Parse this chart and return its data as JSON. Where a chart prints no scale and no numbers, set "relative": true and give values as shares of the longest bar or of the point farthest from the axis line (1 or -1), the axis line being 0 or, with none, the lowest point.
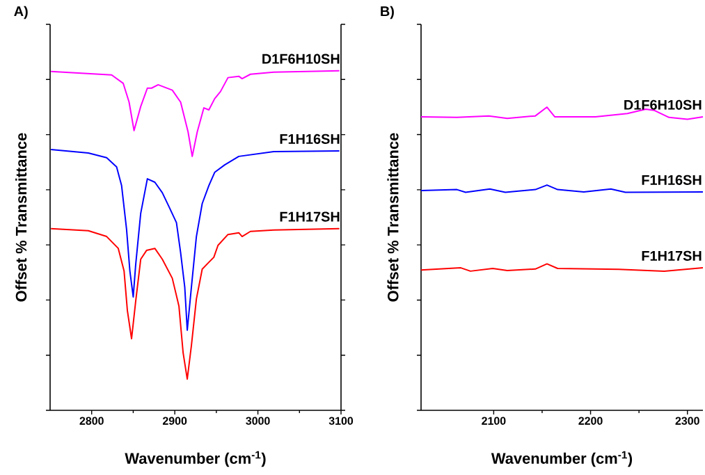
{
  "chart_data": [
    {
      "type": "line",
      "title": "A)",
      "xlabel": "Wavenumber (cm$^{-1}$)",
      "ylabel": "Offset % Transmittance",
      "relative": true,
      "tick_labels": "x",
      "xlim": [
        2750,
        3100
      ],
      "xticks": [
        2800,
        2900,
        3000,
        3100
      ],
      "series": [
        {
          "name": "D1F6H10SH",
          "color": "#ff00ff",
          "x": [
            2751,
            2824,
            2838,
            2845,
            2851,
            2859,
            2867,
            2872,
            2880,
            2897,
            2907,
            2916,
            2921,
            2927,
            2935,
            2941,
            2948,
            2955,
            2964,
            2977,
            2981,
            2991,
            3019,
            3098
          ],
          "values": [
            0.998,
            0.988,
            0.963,
            0.908,
            0.824,
            0.895,
            0.949,
            0.949,
            0.959,
            0.943,
            0.908,
            0.82,
            0.748,
            0.82,
            0.891,
            0.885,
            0.918,
            0.939,
            0.98,
            0.984,
            0.977,
            0.99,
            0.996,
            1.0
          ]
        },
        {
          "name": "F1H16SH",
          "color": "#0000ff",
          "x": [
            2751,
            2796,
            2818,
            2830,
            2836,
            2842,
            2846,
            2850,
            2853,
            2859,
            2867,
            2876,
            2885,
            2893,
            2902,
            2907,
            2912,
            2915,
            2920,
            2926,
            2933,
            2941,
            2948,
            2960,
            2977,
            3019,
            3098
          ],
          "values": [
            0.768,
            0.758,
            0.744,
            0.717,
            0.662,
            0.533,
            0.41,
            0.334,
            0.43,
            0.58,
            0.682,
            0.672,
            0.641,
            0.6,
            0.553,
            0.465,
            0.363,
            0.236,
            0.363,
            0.512,
            0.609,
            0.662,
            0.701,
            0.723,
            0.748,
            0.762,
            0.764
          ]
        },
        {
          "name": "F1H17SH",
          "color": "#ff0000",
          "x": [
            2751,
            2796,
            2818,
            2832,
            2839,
            2843,
            2848,
            2853,
            2859,
            2866,
            2876,
            2885,
            2897,
            2905,
            2910,
            2915,
            2920,
            2926,
            2933,
            2941,
            2947,
            2952,
            2964,
            2977,
            2981,
            2991,
            3019,
            3098
          ],
          "values": [
            0.535,
            0.529,
            0.512,
            0.477,
            0.41,
            0.293,
            0.211,
            0.322,
            0.445,
            0.471,
            0.477,
            0.445,
            0.389,
            0.307,
            0.17,
            0.092,
            0.191,
            0.328,
            0.416,
            0.436,
            0.451,
            0.486,
            0.518,
            0.523,
            0.512,
            0.527,
            0.531,
            0.535
          ]
        }
      ]
    },
    {
      "type": "line",
      "title": "B)",
      "xlabel": "Wavenumber (cm$^{-1}$)",
      "ylabel": "Offset % Transmittance",
      "relative": true,
      "tick_labels": "x",
      "xlim": [
        2025,
        2316
      ],
      "xticks": [
        2100,
        2200,
        2300
      ],
      "series": [
        {
          "name": "D1F6H10SH",
          "color": "#ff00ff",
          "x": [
            2025,
            2062,
            2095,
            2114,
            2143,
            2155,
            2163,
            2205,
            2238,
            2257,
            2266,
            2281,
            2300,
            2316
          ],
          "values": [
            0.968,
            0.966,
            0.971,
            0.963,
            0.971,
            1.0,
            0.968,
            0.968,
            0.979,
            0.993,
            0.989,
            0.966,
            0.96,
            0.968
          ]
        },
        {
          "name": "F1H16SH",
          "color": "#0000ff",
          "x": [
            2025,
            2062,
            2071,
            2096,
            2112,
            2143,
            2155,
            2166,
            2193,
            2221,
            2236,
            2316
          ],
          "values": [
            0.725,
            0.728,
            0.719,
            0.73,
            0.719,
            0.728,
            0.743,
            0.728,
            0.72,
            0.73,
            0.719,
            0.72
          ]
        },
        {
          "name": "F1H17SH",
          "color": "#ff0000",
          "x": [
            2025,
            2066,
            2076,
            2099,
            2114,
            2143,
            2155,
            2166,
            2229,
            2276,
            2316
          ],
          "values": [
            0.463,
            0.47,
            0.459,
            0.468,
            0.461,
            0.466,
            0.483,
            0.468,
            0.465,
            0.459,
            0.47
          ]
        }
      ]
    }
  ]
}
